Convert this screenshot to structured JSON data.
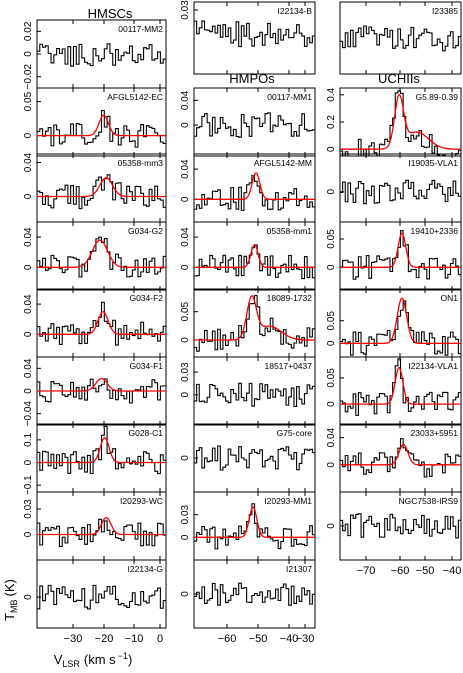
{
  "figure": {
    "y_axis_label": "T",
    "y_axis_label_sub": "MB",
    "y_axis_label_unit": "(K)",
    "x_axis_label": "V",
    "x_axis_label_sub": "LSR",
    "x_axis_label_unit": "(km s",
    "x_axis_label_exp": "−1",
    "x_axis_label_close": ")"
  },
  "chart_data": [
    {
      "type": "line",
      "group": "HMSCs",
      "x_ticks": [
        "−30",
        "−20",
        "−10",
        "0"
      ],
      "xlim": [
        -38,
        3
      ],
      "panels": [
        {
          "name": "00117-MM2",
          "ylim": [
            -0.03,
            0.03
          ],
          "y_ticks": [
            {
              "v": 0.02,
              "t": "0.02"
            },
            {
              "v": 0.0,
              "t": "0"
            },
            {
              "v": -0.02,
              "t": "−0.02"
            }
          ],
          "fit": null,
          "line_peak": null
        },
        {
          "name": "AFGL5142-EC",
          "ylim": [
            -0.03,
            0.07
          ],
          "y_ticks": [
            {
              "v": 0.05,
              "t": "0.05"
            },
            {
              "v": 0.0,
              "t": "0"
            }
          ],
          "fit": {
            "v0": -16.8,
            "amp": 0.03,
            "width": 1.5
          }
        },
        {
          "name": "05358-mm3",
          "ylim": [
            -0.03,
            0.05
          ],
          "y_ticks": [
            {
              "v": 0.04,
              "t": "0.04"
            },
            {
              "v": 0.0,
              "t": "0"
            }
          ],
          "fit": {
            "v0": -16.0,
            "amp": 0.022,
            "width": 2.0
          }
        },
        {
          "name": "G034-G2",
          "ylim": [
            -0.03,
            0.06
          ],
          "y_ticks": [
            {
              "v": 0.04,
              "t": "0.04"
            },
            {
              "v": 0.0,
              "t": "0"
            }
          ],
          "fit": {
            "v0": -18.0,
            "amp": 0.036,
            "width": 2.4
          }
        },
        {
          "name": "G034-F2",
          "ylim": [
            -0.03,
            0.06
          ],
          "y_ticks": [
            {
              "v": 0.04,
              "t": "0.04"
            },
            {
              "v": 0.0,
              "t": "0"
            }
          ],
          "fit": {
            "v0": -17.0,
            "amp": 0.03,
            "width": 1.6
          }
        },
        {
          "name": "G034-F1",
          "ylim": [
            -0.06,
            0.06
          ],
          "y_ticks": [
            {
              "v": 0.04,
              "t": "0.04"
            },
            {
              "v": 0.0,
              "t": "0"
            },
            {
              "v": -0.04,
              "t": "−0.04"
            }
          ],
          "fit": {
            "v0": -17.5,
            "amp": 0.022,
            "width": 1.8
          }
        },
        {
          "name": "G028-C1",
          "ylim": [
            -0.13,
            0.17
          ],
          "y_ticks": [
            {
              "v": 0.1,
              "t": "0.1"
            },
            {
              "v": 0.0,
              "t": "0"
            },
            {
              "v": -0.1,
              "t": "−0.1"
            }
          ],
          "fit": {
            "v0": -16.5,
            "amp": 0.11,
            "width": 1.4
          }
        },
        {
          "name": "I20293-WC",
          "ylim": [
            -0.03,
            0.05
          ],
          "y_ticks": [
            {
              "v": 0.03,
              "t": "0.03"
            },
            {
              "v": 0.0,
              "t": "0"
            }
          ],
          "fit": {
            "v0": -16.0,
            "amp": 0.02,
            "width": 1.5
          }
        },
        {
          "name": "I22134-G",
          "ylim": [
            -0.05,
            0.06
          ],
          "y_ticks": [
            {
              "v": 0.0,
              "t": "0"
            }
          ],
          "fit": null
        }
      ]
    },
    {
      "type": "line",
      "group": "HMPOs",
      "x_ticks": [
        "−60",
        "−50",
        "−40",
        "−30"
      ],
      "xlim": [
        -67,
        -26
      ],
      "panels": [
        {
          "name": "I22134-B",
          "ylim": [
            -0.05,
            0.04
          ],
          "y_ticks": [
            {
              "v": 0.03,
              "t": "0.03"
            }
          ],
          "fit": null,
          "top_panel": true
        },
        {
          "name": "00117-MM1",
          "ylim": [
            -0.05,
            0.06
          ],
          "y_ticks": [
            {
              "v": 0.04,
              "t": "0.04"
            },
            {
              "v": 0.0,
              "t": "0"
            }
          ],
          "fit": null
        },
        {
          "name": "AFGL5142-MM",
          "ylim": [
            -0.03,
            0.06
          ],
          "y_ticks": [
            {
              "v": 0.04,
              "t": "0.04"
            },
            {
              "v": 0.0,
              "t": "0"
            }
          ],
          "fit": {
            "v0": -46.0,
            "amp": 0.035,
            "width": 1.3
          }
        },
        {
          "name": "05358-mm1",
          "ylim": [
            -0.03,
            0.06
          ],
          "y_ticks": [
            {
              "v": 0.04,
              "t": "0.04"
            },
            {
              "v": 0.0,
              "t": "0"
            }
          ],
          "fit": {
            "v0": -46.5,
            "amp": 0.03,
            "width": 1.2
          }
        },
        {
          "name": "18089-1732",
          "ylim": [
            -0.03,
            0.09
          ],
          "y_ticks": [
            {
              "v": 0.05,
              "t": "0.05"
            },
            {
              "v": 0.0,
              "t": "0"
            }
          ],
          "fit": {
            "v0": -47.5,
            "amp": 0.07,
            "width": 1.6,
            "wing": true
          }
        },
        {
          "name": "18517+0437",
          "ylim": [
            -0.04,
            0.05
          ],
          "y_ticks": [
            {
              "v": 0.03,
              "t": "0.03"
            },
            {
              "v": 0.0,
              "t": "0"
            }
          ],
          "fit": null
        },
        {
          "name": "G75-core",
          "ylim": [
            -0.05,
            0.05
          ],
          "y_ticks": [
            {
              "v": 0.0,
              "t": "0"
            }
          ],
          "fit": null
        },
        {
          "name": "I20293-MM1",
          "ylim": [
            -0.03,
            0.06
          ],
          "y_ticks": [
            {
              "v": 0.03,
              "t": "0.03"
            },
            {
              "v": 0.0,
              "t": "0"
            }
          ],
          "fit": {
            "v0": -47.0,
            "amp": 0.04,
            "width": 1.3
          }
        },
        {
          "name": "I21307",
          "ylim": [
            -0.05,
            0.05
          ],
          "y_ticks": [
            {
              "v": 0.0,
              "t": "0"
            }
          ],
          "fit": null
        }
      ]
    },
    {
      "type": "line",
      "group": "UCHIIs",
      "x_ticks": [
        "−70",
        "−60",
        "−50",
        "−40"
      ],
      "xlim": [
        -78,
        -37
      ],
      "panels": [
        {
          "name": "I23385",
          "ylim": [
            -0.05,
            0.05
          ],
          "y_ticks": [],
          "fit": null,
          "top_panel": true
        },
        {
          "name": "G5.89-0.39",
          "ylim": [
            -0.05,
            0.45
          ],
          "y_ticks": [
            {
              "v": 0.4,
              "t": "0.4"
            },
            {
              "v": 0.2,
              "t": "0.2"
            },
            {
              "v": 0.0,
              "t": "0"
            }
          ],
          "fit": {
            "v0": -58.0,
            "amp": 0.36,
            "width": 1.5,
            "wing": true
          }
        },
        {
          "name": "I19035-VLA1",
          "ylim": [
            -0.04,
            0.05
          ],
          "y_ticks": [
            {
              "v": 0.0,
              "t": "0"
            }
          ],
          "fit": null
        },
        {
          "name": "19410+2336",
          "ylim": [
            -0.04,
            0.08
          ],
          "y_ticks": [
            {
              "v": 0.05,
              "t": "0.05"
            },
            {
              "v": 0.0,
              "t": "0"
            }
          ],
          "fit": {
            "v0": -57.0,
            "amp": 0.06,
            "width": 1.3
          }
        },
        {
          "name": "ON1",
          "ylim": [
            -0.03,
            0.12
          ],
          "y_ticks": [
            {
              "v": 0.05,
              "t": "0.05"
            },
            {
              "v": 0.0,
              "t": "0"
            }
          ],
          "fit": {
            "v0": -57.0,
            "amp": 0.1,
            "width": 1.6
          }
        },
        {
          "name": "I22134-VLA1",
          "ylim": [
            -0.04,
            0.09
          ],
          "y_ticks": [
            {
              "v": 0.05,
              "t": "0.05"
            },
            {
              "v": 0.0,
              "t": "0"
            }
          ],
          "fit": {
            "v0": -58.0,
            "amp": 0.07,
            "width": 1.3
          }
        },
        {
          "name": "23033+5951",
          "ylim": [
            -0.04,
            0.06
          ],
          "y_ticks": [
            {
              "v": 0.04,
              "t": "0.04"
            },
            {
              "v": 0.0,
              "t": "0"
            }
          ],
          "fit": {
            "v0": -56.5,
            "amp": 0.03,
            "width": 1.5
          }
        },
        {
          "name": "NGC7538-IRS9",
          "ylim": [
            -0.05,
            0.05
          ],
          "y_ticks": [
            {
              "v": 0.0,
              "t": "0"
            }
          ],
          "fit": null
        }
      ]
    }
  ],
  "style": {
    "spectrum_color": "#000000",
    "fit_color": "#ff0000",
    "axis_color": "#000000"
  }
}
